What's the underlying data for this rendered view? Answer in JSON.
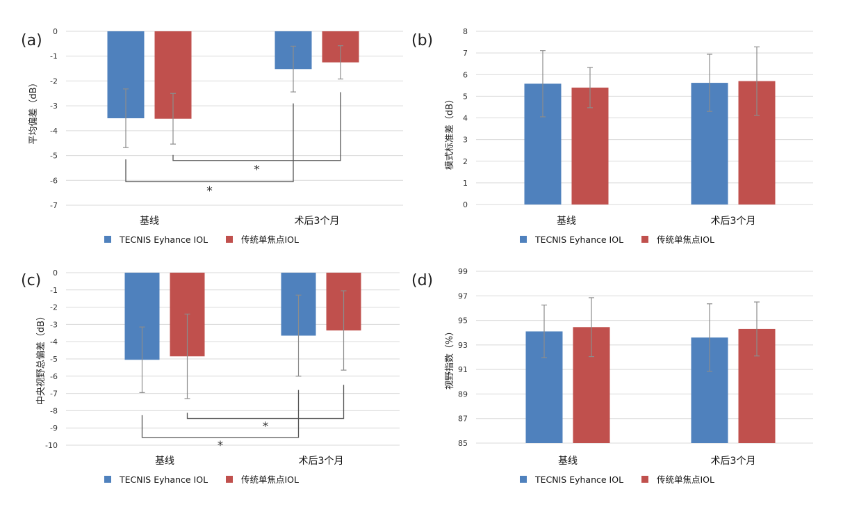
{
  "colors": {
    "blue": "#4f81bd",
    "red": "#c0504d",
    "grid": "#d9d9d9",
    "error": "#8c8c8c",
    "bracket": "#555555"
  },
  "chart_data": [
    {
      "panel_label": "(a)",
      "type": "bar",
      "ylabel": "平均偏差（dB）",
      "categories": [
        "基线",
        "术后3个月"
      ],
      "ylim": [
        -7,
        0
      ],
      "yticks": [
        0,
        -1,
        -2,
        -3,
        -4,
        -5,
        -6,
        -7
      ],
      "series": [
        {
          "name": "TECNIS Eyhance IOL",
          "color_key": "blue",
          "values": [
            -3.5,
            -1.52
          ],
          "error": [
            1.18,
            0.92
          ]
        },
        {
          "name": "传统单焦点IOL",
          "color_key": "red",
          "values": [
            -3.52,
            -1.25
          ],
          "error": [
            1.02,
            0.67
          ]
        }
      ],
      "significance": [
        {
          "label": "*",
          "from": [
            0,
            1
          ],
          "to": [
            1,
            1
          ],
          "top_value": -2.45,
          "bar_value": -5.2
        },
        {
          "label": "*",
          "from": [
            0,
            0
          ],
          "to": [
            1,
            0
          ],
          "top_value": -2.9,
          "bar_value": -6.05
        }
      ],
      "legend": [
        "TECNIS Eyhance IOL",
        "传统单焦点IOL"
      ]
    },
    {
      "panel_label": "(b)",
      "type": "bar",
      "ylabel": "模式标准差（dB）",
      "categories": [
        "基线",
        "术后3个月"
      ],
      "ylim": [
        0,
        8
      ],
      "yticks": [
        0,
        1,
        2,
        3,
        4,
        5,
        6,
        7,
        8
      ],
      "series": [
        {
          "name": "TECNIS Eyhance IOL",
          "color_key": "blue",
          "values": [
            5.58,
            5.62
          ],
          "error": [
            1.53,
            1.32
          ]
        },
        {
          "name": "传统单焦点IOL",
          "color_key": "red",
          "values": [
            5.4,
            5.7
          ],
          "error": [
            0.93,
            1.58
          ]
        }
      ],
      "significance": [],
      "legend": [
        "TECNIS Eyhance IOL",
        "传统单焦点IOL"
      ]
    },
    {
      "panel_label": "(c)",
      "type": "bar",
      "ylabel": "中央视野总偏差（dB）",
      "categories": [
        "基线",
        "术后3个月"
      ],
      "ylim": [
        -10,
        0
      ],
      "yticks": [
        0,
        -1,
        -2,
        -3,
        -4,
        -5,
        -6,
        -7,
        -8,
        -9,
        -10
      ],
      "series": [
        {
          "name": "TECNIS Eyhance IOL",
          "color_key": "blue",
          "values": [
            -5.05,
            -3.65
          ],
          "error": [
            1.9,
            2.35
          ]
        },
        {
          "name": "传统单焦点IOL",
          "color_key": "red",
          "values": [
            -4.85,
            -3.35
          ],
          "error": [
            2.45,
            2.3
          ]
        }
      ],
      "significance": [
        {
          "label": "*",
          "from": [
            0,
            1
          ],
          "to": [
            1,
            1
          ],
          "top_value": -6.5,
          "bar_value": -8.45
        },
        {
          "label": "*",
          "from": [
            0,
            0
          ],
          "to": [
            1,
            0
          ],
          "top_value": -6.8,
          "bar_value": -9.55
        }
      ],
      "legend": [
        "TECNIS Eyhance IOL",
        "传统单焦点IOL"
      ]
    },
    {
      "panel_label": "(d)",
      "type": "bar",
      "ylabel": "视野指数（%）",
      "categories": [
        "基线",
        "术后3个月"
      ],
      "ylim": [
        85,
        99
      ],
      "yticks": [
        85,
        87,
        89,
        91,
        93,
        95,
        97,
        99
      ],
      "series": [
        {
          "name": "TECNIS Eyhance IOL",
          "color_key": "blue",
          "values": [
            94.1,
            93.6
          ],
          "error": [
            2.15,
            2.75
          ]
        },
        {
          "name": "传统单焦点IOL",
          "color_key": "red",
          "values": [
            94.45,
            94.3
          ],
          "error": [
            2.4,
            2.2
          ]
        }
      ],
      "significance": [],
      "legend": [
        "TECNIS Eyhance IOL",
        "传统单焦点IOL"
      ]
    }
  ]
}
